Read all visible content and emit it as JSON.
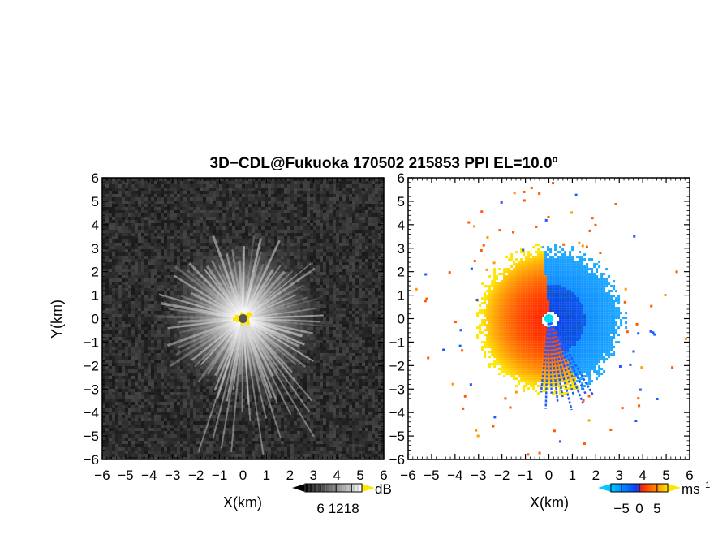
{
  "figure": {
    "title": "3D−CDL@Fukuoka 170502 215853 PPI EL=10.0º"
  },
  "chart_data": [
    {
      "type": "heatmap",
      "panel": "left",
      "quantity": "signal intensity",
      "xlabel": "X(km)",
      "ylabel": "Y(km)",
      "xlim": [
        -6,
        6
      ],
      "ylim": [
        -6,
        6
      ],
      "xticks": [
        "−6",
        "−5",
        "−4",
        "−3",
        "−2",
        "−1",
        "0",
        "1",
        "2",
        "3",
        "4",
        "5",
        "6"
      ],
      "yticks": [
        "6",
        "5",
        "4",
        "3",
        "2",
        "1",
        "0",
        "−1",
        "−2",
        "−3",
        "−4",
        "−5",
        "−6"
      ],
      "colorbar": {
        "unit": "dB",
        "ticks": [
          {
            "value": 6,
            "label": "6"
          },
          {
            "value": 12,
            "label": "12"
          },
          {
            "value": 18,
            "label": "18"
          }
        ],
        "range": [
          0,
          22
        ],
        "colormap": "grayscale",
        "over_color": "#ffe600"
      },
      "features": {
        "bright_disk_radius_km": 3.0,
        "core_radius_km": 0.4,
        "core_color": "#ffe600",
        "center_marker_color": "#555555"
      }
    },
    {
      "type": "heatmap",
      "panel": "right",
      "quantity": "Doppler velocity",
      "xlabel": "X(km)",
      "ylabel": "",
      "xlim": [
        -6,
        6
      ],
      "ylim": [
        -6,
        6
      ],
      "xticks": [
        "−6",
        "−5",
        "−4",
        "−3",
        "−2",
        "−1",
        "0",
        "1",
        "2",
        "3",
        "4",
        "5",
        "6"
      ],
      "yticks": [
        "6",
        "5",
        "4",
        "3",
        "2",
        "1",
        "0",
        "−1",
        "−2",
        "−3",
        "−4",
        "−5",
        "−6"
      ],
      "colorbar": {
        "unit": "ms",
        "unit_exponent": "−1",
        "ticks": [
          {
            "value": -5,
            "label": "−5"
          },
          {
            "value": 0,
            "label": "0"
          },
          {
            "value": 5,
            "label": "5"
          }
        ],
        "range": [
          -8,
          8
        ],
        "colors": [
          "#00c8ff",
          "#0a3cff",
          "#ff2a00",
          "#ffe600"
        ]
      },
      "features": {
        "outer_radius_km": 3.0,
        "positive_color": "#ff5a00",
        "negative_color": "#1e5aff",
        "center_marker_color": "#00e0f0"
      }
    }
  ]
}
